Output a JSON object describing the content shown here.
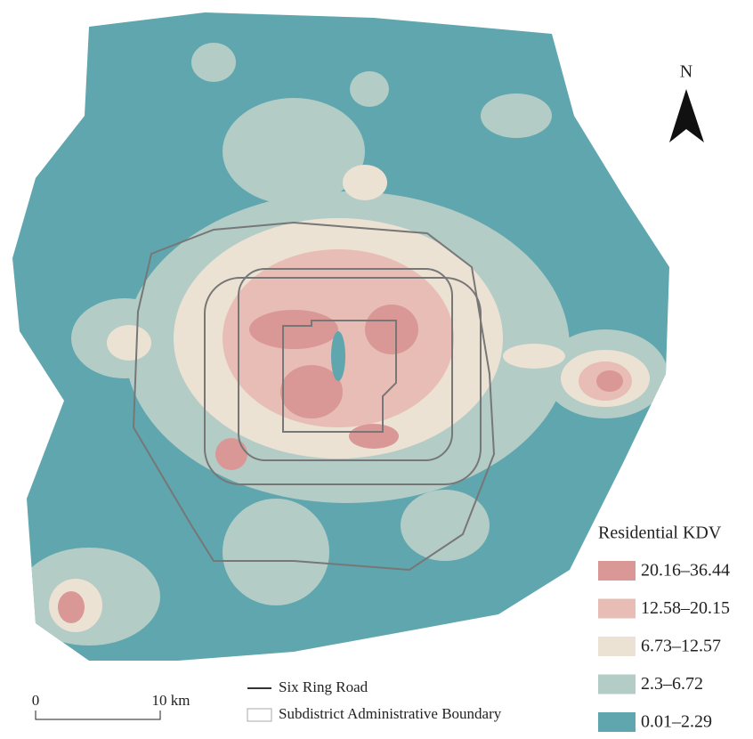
{
  "north": "N",
  "legend": {
    "title": "Residential KDV",
    "classes": [
      {
        "label": "20.16–36.44",
        "color": "#d99896"
      },
      {
        "label": "12.58–20.15",
        "color": "#e8bdb6"
      },
      {
        "label": "6.73–12.57",
        "color": "#ece2d4"
      },
      {
        "label": "2.3–6.72",
        "color": "#b3ccc6"
      },
      {
        "label": "0.01–2.29",
        "color": "#5fa6ae"
      }
    ]
  },
  "line_legend": [
    {
      "label": "Six Ring Road"
    },
    {
      "label": "Subdistrict Administrative Boundary"
    }
  ],
  "scale_bar": {
    "labels": [
      "0",
      "10 km"
    ]
  }
}
